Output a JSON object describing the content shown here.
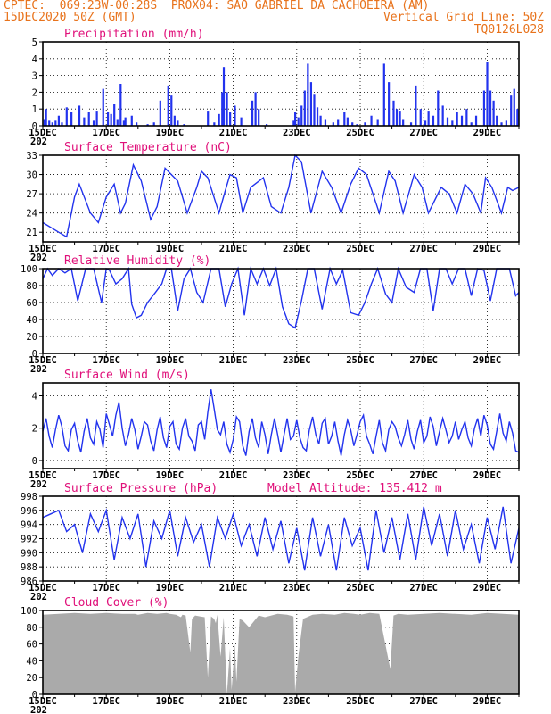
{
  "header": {
    "line1_left": "CPTEC:  069:23W-00:28S  PROX04: SAO GABRIEL DA CACHOEIRA (AM)",
    "line2_left": "15DEC2020 50Z (GMT)",
    "line2_right": "Vertical Grid Line: 50Z",
    "line3_right": "TQ0126L028"
  },
  "colors": {
    "header": "#e8731c",
    "panel_title": "#e0107a",
    "series": "#2233ee",
    "cloud": "#aaaaaa"
  },
  "x_axis": {
    "labels": [
      "15DEC",
      "17DEC",
      "19DEC",
      "21DEC",
      "23DEC",
      "25DEC",
      "27DEC",
      "29DEC"
    ],
    "year_fragment": "202",
    "start_day": 15,
    "end_day": 30
  },
  "chart_data": [
    {
      "type": "bar",
      "title": "Precipitation (mm/h)",
      "ylim": [
        0,
        5
      ],
      "yticks": [
        0,
        1,
        2,
        3,
        4,
        5
      ],
      "grid": "horizontal dashed",
      "x": [
        15.05,
        15.1,
        15.2,
        15.3,
        15.4,
        15.5,
        15.6,
        15.75,
        15.9,
        16.15,
        16.3,
        16.45,
        16.6,
        16.7,
        16.9,
        17.05,
        17.15,
        17.25,
        17.35,
        17.45,
        17.55,
        17.6,
        17.8,
        17.95,
        18.3,
        18.5,
        18.7,
        18.95,
        19.05,
        19.15,
        19.25,
        19.45,
        20.2,
        20.4,
        20.55,
        20.65,
        20.7,
        20.8,
        20.9,
        21.05,
        21.25,
        21.6,
        21.7,
        21.8,
        22.05,
        22.9,
        22.95,
        23.05,
        23.15,
        23.25,
        23.35,
        23.45,
        23.55,
        23.65,
        23.75,
        23.9,
        24.15,
        24.3,
        24.5,
        24.6,
        24.75,
        24.9,
        25.15,
        25.35,
        25.55,
        25.75,
        25.9,
        26.05,
        26.15,
        26.25,
        26.35,
        26.6,
        26.75,
        26.9,
        27.05,
        27.15,
        27.3,
        27.45,
        27.6,
        27.75,
        27.9,
        28.05,
        28.2,
        28.35,
        28.5,
        28.65,
        28.9,
        29.0,
        29.1,
        29.2,
        29.3,
        29.45,
        29.6,
        29.75,
        29.85,
        29.95
      ],
      "values": [
        0.4,
        1.0,
        0.3,
        0.2,
        0.3,
        0.6,
        0.2,
        1.1,
        0.8,
        1.2,
        0.5,
        0.8,
        0.3,
        0.9,
        2.2,
        0.8,
        0.7,
        1.3,
        0.4,
        2.5,
        0.3,
        0.5,
        0.6,
        0.2,
        0.1,
        0.2,
        1.5,
        2.4,
        1.8,
        0.6,
        0.3,
        0.1,
        0.9,
        0.2,
        0.7,
        2.0,
        3.5,
        2.0,
        0.8,
        1.2,
        0.5,
        1.5,
        2.0,
        1.0,
        0.1,
        0.3,
        0.8,
        0.5,
        1.2,
        2.1,
        3.7,
        2.6,
        1.9,
        1.1,
        0.6,
        0.4,
        0.2,
        0.4,
        0.8,
        0.5,
        0.2,
        0.1,
        0.2,
        0.6,
        0.4,
        3.7,
        2.6,
        1.5,
        1.0,
        0.9,
        0.4,
        0.2,
        2.4,
        1.0,
        0.3,
        0.9,
        0.6,
        2.1,
        1.2,
        0.5,
        0.3,
        0.8,
        0.6,
        1.0,
        0.2,
        0.6,
        2.1,
        3.8,
        2.1,
        1.5,
        0.6,
        0.2,
        0.3,
        1.8,
        2.2,
        1.0
      ]
    },
    {
      "type": "line",
      "title": "Surface Temperature (nC)",
      "ylim": [
        19.5,
        33
      ],
      "yticks": [
        21,
        24,
        27,
        30,
        33
      ],
      "x": [
        15.0,
        15.5,
        15.75,
        16.0,
        16.15,
        16.5,
        16.75,
        17.0,
        17.25,
        17.45,
        17.6,
        17.85,
        18.1,
        18.4,
        18.6,
        18.85,
        19.25,
        19.55,
        19.85,
        20.0,
        20.2,
        20.55,
        20.75,
        20.9,
        21.1,
        21.3,
        21.55,
        21.95,
        22.2,
        22.5,
        22.75,
        22.95,
        23.15,
        23.45,
        23.8,
        24.1,
        24.4,
        24.7,
        24.95,
        25.2,
        25.6,
        25.9,
        26.1,
        26.35,
        26.7,
        26.95,
        27.15,
        27.55,
        27.8,
        28.05,
        28.3,
        28.55,
        28.8,
        28.95,
        29.15,
        29.45,
        29.65,
        29.8,
        30.0
      ],
      "values": [
        22.5,
        21.0,
        20.3,
        26.5,
        28.5,
        24.0,
        22.5,
        26.5,
        28.5,
        24.0,
        25.5,
        31.5,
        29.0,
        23.0,
        25.0,
        31.0,
        29.0,
        24.0,
        28.0,
        30.5,
        29.5,
        24.0,
        27.5,
        30.0,
        29.5,
        24.0,
        28.0,
        29.5,
        25.0,
        24.0,
        28.0,
        33.0,
        32.0,
        24.0,
        30.5,
        28.0,
        24.0,
        28.5,
        31.0,
        30.0,
        24.0,
        30.5,
        29.0,
        24.0,
        30.0,
        28.0,
        24.0,
        28.0,
        27.0,
        24.0,
        28.5,
        27.0,
        24.0,
        29.5,
        28.0,
        24.0,
        28.0,
        27.5,
        28.0
      ]
    },
    {
      "type": "line",
      "title": "Relative Humidity (%)",
      "ylim": [
        0,
        100
      ],
      "yticks": [
        0,
        20,
        40,
        60,
        80,
        100
      ],
      "x": [
        15.0,
        15.15,
        15.3,
        15.5,
        15.7,
        15.9,
        16.1,
        16.35,
        16.6,
        16.85,
        17.0,
        17.1,
        17.3,
        17.5,
        17.7,
        17.8,
        17.95,
        18.1,
        18.3,
        18.55,
        18.75,
        18.9,
        19.05,
        19.25,
        19.45,
        19.65,
        19.85,
        20.05,
        20.3,
        20.55,
        20.75,
        20.95,
        21.15,
        21.35,
        21.55,
        21.75,
        21.95,
        22.15,
        22.35,
        22.55,
        22.75,
        22.95,
        23.15,
        23.35,
        23.55,
        23.8,
        24.05,
        24.25,
        24.45,
        24.7,
        24.95,
        25.15,
        25.35,
        25.55,
        25.8,
        26.0,
        26.2,
        26.45,
        26.7,
        26.9,
        27.1,
        27.3,
        27.5,
        27.7,
        27.9,
        28.1,
        28.3,
        28.5,
        28.7,
        28.9,
        29.1,
        29.3,
        29.5,
        29.7,
        29.9,
        30.0
      ],
      "values": [
        88,
        100,
        92,
        100,
        95,
        100,
        62,
        100,
        100,
        60,
        100,
        98,
        82,
        88,
        100,
        58,
        42,
        45,
        60,
        72,
        82,
        100,
        100,
        50,
        88,
        100,
        72,
        60,
        100,
        100,
        55,
        82,
        100,
        45,
        100,
        82,
        100,
        80,
        100,
        55,
        35,
        30,
        62,
        100,
        100,
        52,
        100,
        82,
        98,
        48,
        45,
        60,
        82,
        100,
        70,
        60,
        100,
        78,
        72,
        100,
        100,
        50,
        100,
        100,
        82,
        100,
        100,
        68,
        100,
        98,
        62,
        100,
        100,
        100,
        68,
        72
      ]
    },
    {
      "type": "line",
      "title": "Surface Wind (m/s)",
      "ylim": [
        -0.5,
        4.8
      ],
      "yticks": [
        0,
        2,
        4
      ],
      "x": [
        15.0,
        15.1,
        15.2,
        15.3,
        15.4,
        15.5,
        15.6,
        15.7,
        15.8,
        15.9,
        16.0,
        16.1,
        16.2,
        16.3,
        16.4,
        16.5,
        16.6,
        16.7,
        16.8,
        16.9,
        17.0,
        17.1,
        17.2,
        17.3,
        17.4,
        17.5,
        17.6,
        17.7,
        17.8,
        17.9,
        18.0,
        18.1,
        18.2,
        18.3,
        18.4,
        18.5,
        18.6,
        18.7,
        18.8,
        18.9,
        19.0,
        19.1,
        19.2,
        19.3,
        19.4,
        19.5,
        19.6,
        19.7,
        19.8,
        19.9,
        20.0,
        20.1,
        20.2,
        20.3,
        20.4,
        20.5,
        20.6,
        20.7,
        20.8,
        20.9,
        21.0,
        21.1,
        21.2,
        21.3,
        21.4,
        21.5,
        21.6,
        21.7,
        21.8,
        21.9,
        22.0,
        22.1,
        22.2,
        22.3,
        22.4,
        22.5,
        22.6,
        22.7,
        22.8,
        22.9,
        23.0,
        23.1,
        23.2,
        23.3,
        23.4,
        23.5,
        23.6,
        23.7,
        23.8,
        23.9,
        24.0,
        24.1,
        24.2,
        24.3,
        24.4,
        24.5,
        24.6,
        24.7,
        24.8,
        24.9,
        25.0,
        25.1,
        25.2,
        25.3,
        25.4,
        25.5,
        25.6,
        25.7,
        25.8,
        25.9,
        26.0,
        26.1,
        26.2,
        26.3,
        26.4,
        26.5,
        26.6,
        26.7,
        26.8,
        26.9,
        27.0,
        27.1,
        27.2,
        27.3,
        27.4,
        27.5,
        27.6,
        27.7,
        27.8,
        27.9,
        28.0,
        28.1,
        28.2,
        28.3,
        28.4,
        28.5,
        28.6,
        28.7,
        28.8,
        28.9,
        29.0,
        29.1,
        29.2,
        29.3,
        29.4,
        29.5,
        29.6,
        29.7,
        29.8,
        29.9,
        30.0
      ],
      "values": [
        1.8,
        2.6,
        1.5,
        0.8,
        1.9,
        2.8,
        2.1,
        0.9,
        0.6,
        1.9,
        2.3,
        1.2,
        0.5,
        1.8,
        2.6,
        1.4,
        1.0,
        2.4,
        1.9,
        0.8,
        2.9,
        2.2,
        1.5,
        2.8,
        3.6,
        2.0,
        0.9,
        1.6,
        2.6,
        1.9,
        0.7,
        1.5,
        2.4,
        2.2,
        1.2,
        0.6,
        1.9,
        2.7,
        1.4,
        0.8,
        2.1,
        2.4,
        1.0,
        0.7,
        2.0,
        2.6,
        1.5,
        1.2,
        0.6,
        2.2,
        2.4,
        1.3,
        3.0,
        4.4,
        3.2,
        1.9,
        1.6,
        2.4,
        1.0,
        0.5,
        1.3,
        2.7,
        2.4,
        0.9,
        0.3,
        1.8,
        2.6,
        1.4,
        0.8,
        2.4,
        1.6,
        0.4,
        1.6,
        2.6,
        1.6,
        0.5,
        1.6,
        2.6,
        1.3,
        1.5,
        2.5,
        1.4,
        0.8,
        0.6,
        1.9,
        2.7,
        1.6,
        1.0,
        2.3,
        2.6,
        1.0,
        1.5,
        2.4,
        1.2,
        0.3,
        1.6,
        2.5,
        1.9,
        0.9,
        1.6,
        2.4,
        2.8,
        1.5,
        1.0,
        0.4,
        1.5,
        2.5,
        1.1,
        0.6,
        1.9,
        2.4,
        2.1,
        1.4,
        0.9,
        1.6,
        2.5,
        1.3,
        0.7,
        1.8,
        2.5,
        1.1,
        1.5,
        2.7,
        2.1,
        0.9,
        1.8,
        2.6,
        1.9,
        1.1,
        1.5,
        2.4,
        1.3,
        1.9,
        2.4,
        1.4,
        0.9,
        2.0,
        2.6,
        1.5,
        2.8,
        2.2,
        1.0,
        0.7,
        1.8,
        2.9,
        1.7,
        1.2,
        2.4,
        1.7,
        0.6,
        0.5
      ]
    },
    {
      "type": "line",
      "title": "Surface Pressure (hPa)",
      "annotation": "Model Altitude: 135.412 m",
      "ylim": [
        986,
        998
      ],
      "yticks": [
        986,
        988,
        990,
        992,
        994,
        996,
        998
      ],
      "x": [
        15.0,
        15.25,
        15.5,
        15.75,
        16.0,
        16.25,
        16.5,
        16.75,
        17.0,
        17.25,
        17.5,
        17.75,
        18.0,
        18.25,
        18.5,
        18.75,
        19.0,
        19.25,
        19.5,
        19.75,
        20.0,
        20.25,
        20.5,
        20.75,
        21.0,
        21.25,
        21.5,
        21.75,
        22.0,
        22.25,
        22.5,
        22.75,
        23.0,
        23.25,
        23.5,
        23.75,
        24.0,
        24.25,
        24.5,
        24.75,
        25.0,
        25.25,
        25.5,
        25.75,
        26.0,
        26.25,
        26.5,
        26.75,
        27.0,
        27.25,
        27.5,
        27.75,
        28.0,
        28.25,
        28.5,
        28.75,
        29.0,
        29.25,
        29.5,
        29.75,
        30.0
      ],
      "values": [
        995.0,
        995.5,
        996.0,
        993.0,
        994.0,
        990.0,
        995.5,
        993.0,
        996.0,
        989.0,
        995.0,
        992.0,
        995.5,
        988.0,
        994.5,
        992.0,
        996.0,
        989.5,
        995.0,
        991.5,
        994.0,
        988.0,
        995.0,
        992.0,
        995.5,
        991.0,
        994.0,
        989.5,
        995.0,
        990.5,
        994.5,
        988.5,
        993.5,
        987.5,
        995.0,
        989.5,
        994.0,
        987.5,
        995.0,
        991.0,
        993.5,
        987.5,
        996.0,
        990.0,
        995.0,
        989.0,
        995.5,
        989.0,
        996.5,
        991.0,
        995.5,
        989.5,
        996.0,
        990.5,
        994.0,
        988.5,
        995.0,
        990.5,
        996.5,
        988.5,
        993.5
      ]
    },
    {
      "type": "area",
      "title": "Cloud Cover (%)",
      "ylim": [
        0,
        100
      ],
      "yticks": [
        0,
        20,
        40,
        60,
        80,
        100
      ],
      "x": [
        15.0,
        15.5,
        16.0,
        16.5,
        17.0,
        17.5,
        17.9,
        18.0,
        18.3,
        18.6,
        18.9,
        19.0,
        19.2,
        19.35,
        19.4,
        19.5,
        19.65,
        19.7,
        19.8,
        19.95,
        20.1,
        20.2,
        20.3,
        20.4,
        20.45,
        20.5,
        20.6,
        20.7,
        20.8,
        20.9,
        20.95,
        21.05,
        21.1,
        21.2,
        21.3,
        21.5,
        21.8,
        22.0,
        22.4,
        22.7,
        22.9,
        22.95,
        23.05,
        23.2,
        23.5,
        23.8,
        24.2,
        24.5,
        24.8,
        25.0,
        25.3,
        25.6,
        25.95,
        26.05,
        26.2,
        26.5,
        27.0,
        27.5,
        28.0,
        28.5,
        29.0,
        29.5,
        30.0
      ],
      "values": [
        95,
        96,
        97,
        96,
        97,
        96,
        96,
        95,
        97,
        96,
        97,
        96,
        95,
        92,
        95,
        94,
        50,
        90,
        94,
        93,
        92,
        20,
        93,
        90,
        85,
        95,
        45,
        92,
        0,
        55,
        5,
        60,
        15,
        90,
        88,
        80,
        94,
        92,
        96,
        95,
        93,
        3,
        45,
        90,
        95,
        96,
        95,
        97,
        96,
        95,
        97,
        96,
        30,
        94,
        96,
        95,
        96,
        97,
        96,
        95,
        97,
        96,
        95
      ]
    }
  ]
}
